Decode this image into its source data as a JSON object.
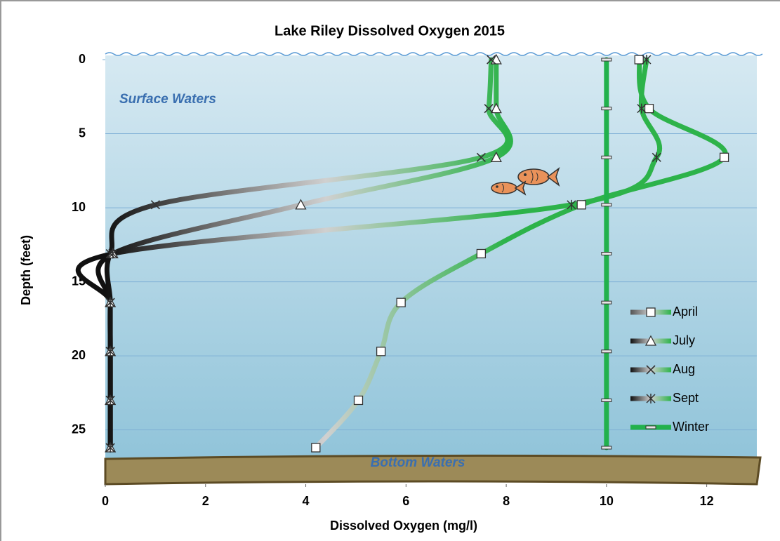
{
  "chart_data": {
    "type": "line",
    "title": "Lake Riley Dissolved Oxygen  2015",
    "x_label": "Dissolved Oxygen (mg/l)",
    "y_label": "Depth (feet)",
    "annotations": [
      "Surface Waters",
      "Bottom Waters"
    ],
    "y": [
      0,
      3.3,
      6.6,
      9.8,
      13.1,
      16.4,
      19.7,
      23,
      26.2
    ],
    "xlim": [
      0,
      13
    ],
    "ylim": [
      0,
      28
    ],
    "xticks": [
      0,
      2,
      4,
      6,
      8,
      10,
      12
    ],
    "yticks": [
      0,
      5,
      10,
      15,
      20,
      25
    ],
    "y_inverted": true,
    "grid": true,
    "legend": "lower right",
    "series": [
      {
        "name": "April",
        "marker": "square",
        "color": "#2db34a",
        "low_color": "#555555",
        "values": [
          10.65,
          10.85,
          12.35,
          9.5,
          7.5,
          5.9,
          5.5,
          5.05,
          4.2
        ]
      },
      {
        "name": "July",
        "marker": "triangle",
        "color": "#2db34a",
        "low_color": "#111111",
        "values": [
          7.8,
          7.8,
          7.8,
          3.9,
          0.15,
          0.1,
          0.1,
          0.1,
          0.1
        ]
      },
      {
        "name": "Aug",
        "marker": "x",
        "color": "#2db34a",
        "low_color": "#111111",
        "values": [
          7.7,
          7.65,
          7.5,
          1.0,
          0.1,
          0.1,
          0.1,
          0.1,
          0.1
        ]
      },
      {
        "name": "Sept",
        "marker": "asterisk",
        "color": "#2db34a",
        "low_color": "#111111",
        "values": [
          10.8,
          10.7,
          11.0,
          9.3,
          0.15,
          0.1,
          0.1,
          0.1,
          0.1
        ]
      },
      {
        "name": "Winter",
        "marker": "dash",
        "color": "#22b14c",
        "values": [
          10,
          10,
          10,
          10,
          10,
          10,
          10,
          10,
          10
        ]
      }
    ]
  }
}
